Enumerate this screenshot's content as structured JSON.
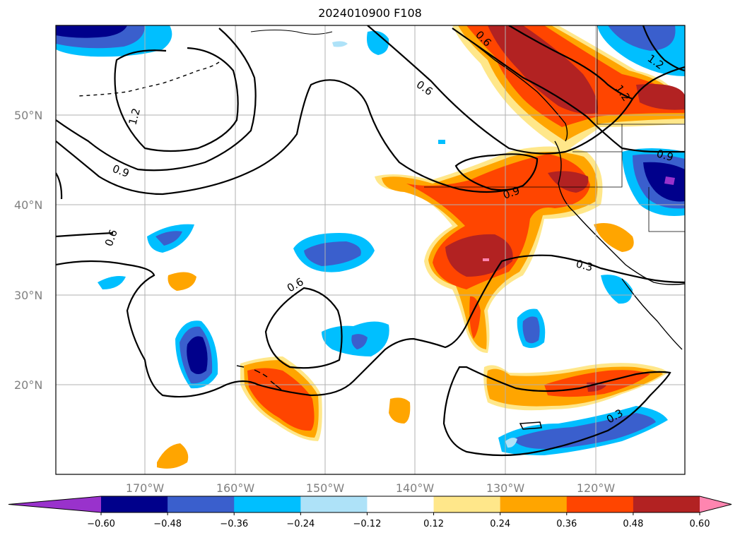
{
  "title": "2024010900 F108",
  "map": {
    "latitude_labels": [
      "50°N",
      "40°N",
      "30°N",
      "20°N"
    ],
    "longitude_labels": [
      "170°W",
      "160°W",
      "150°W",
      "140°W",
      "130°W",
      "120°W"
    ],
    "gridlines": true
  },
  "contours": {
    "color": "#000000",
    "labels": [
      "1.2",
      "0.9",
      "0.6",
      "0.6",
      "0.6",
      "0.9",
      "1.2",
      "1.2",
      "0.9",
      "0.3",
      "0.3"
    ]
  },
  "colorbar": {
    "tick_labels": [
      "−0.60",
      "−0.48",
      "−0.36",
      "−0.24",
      "−0.12",
      "0.12",
      "0.24",
      "0.36",
      "0.48",
      "0.60"
    ],
    "colors": [
      "#9932cc",
      "#00008b",
      "#3a5fcd",
      "#00bfff",
      "#aee2f8",
      "#ffffff",
      "#ffe78a",
      "#ffa500",
      "#ff4500",
      "#b22222",
      "#ff85b0"
    ],
    "extend": "both"
  }
}
